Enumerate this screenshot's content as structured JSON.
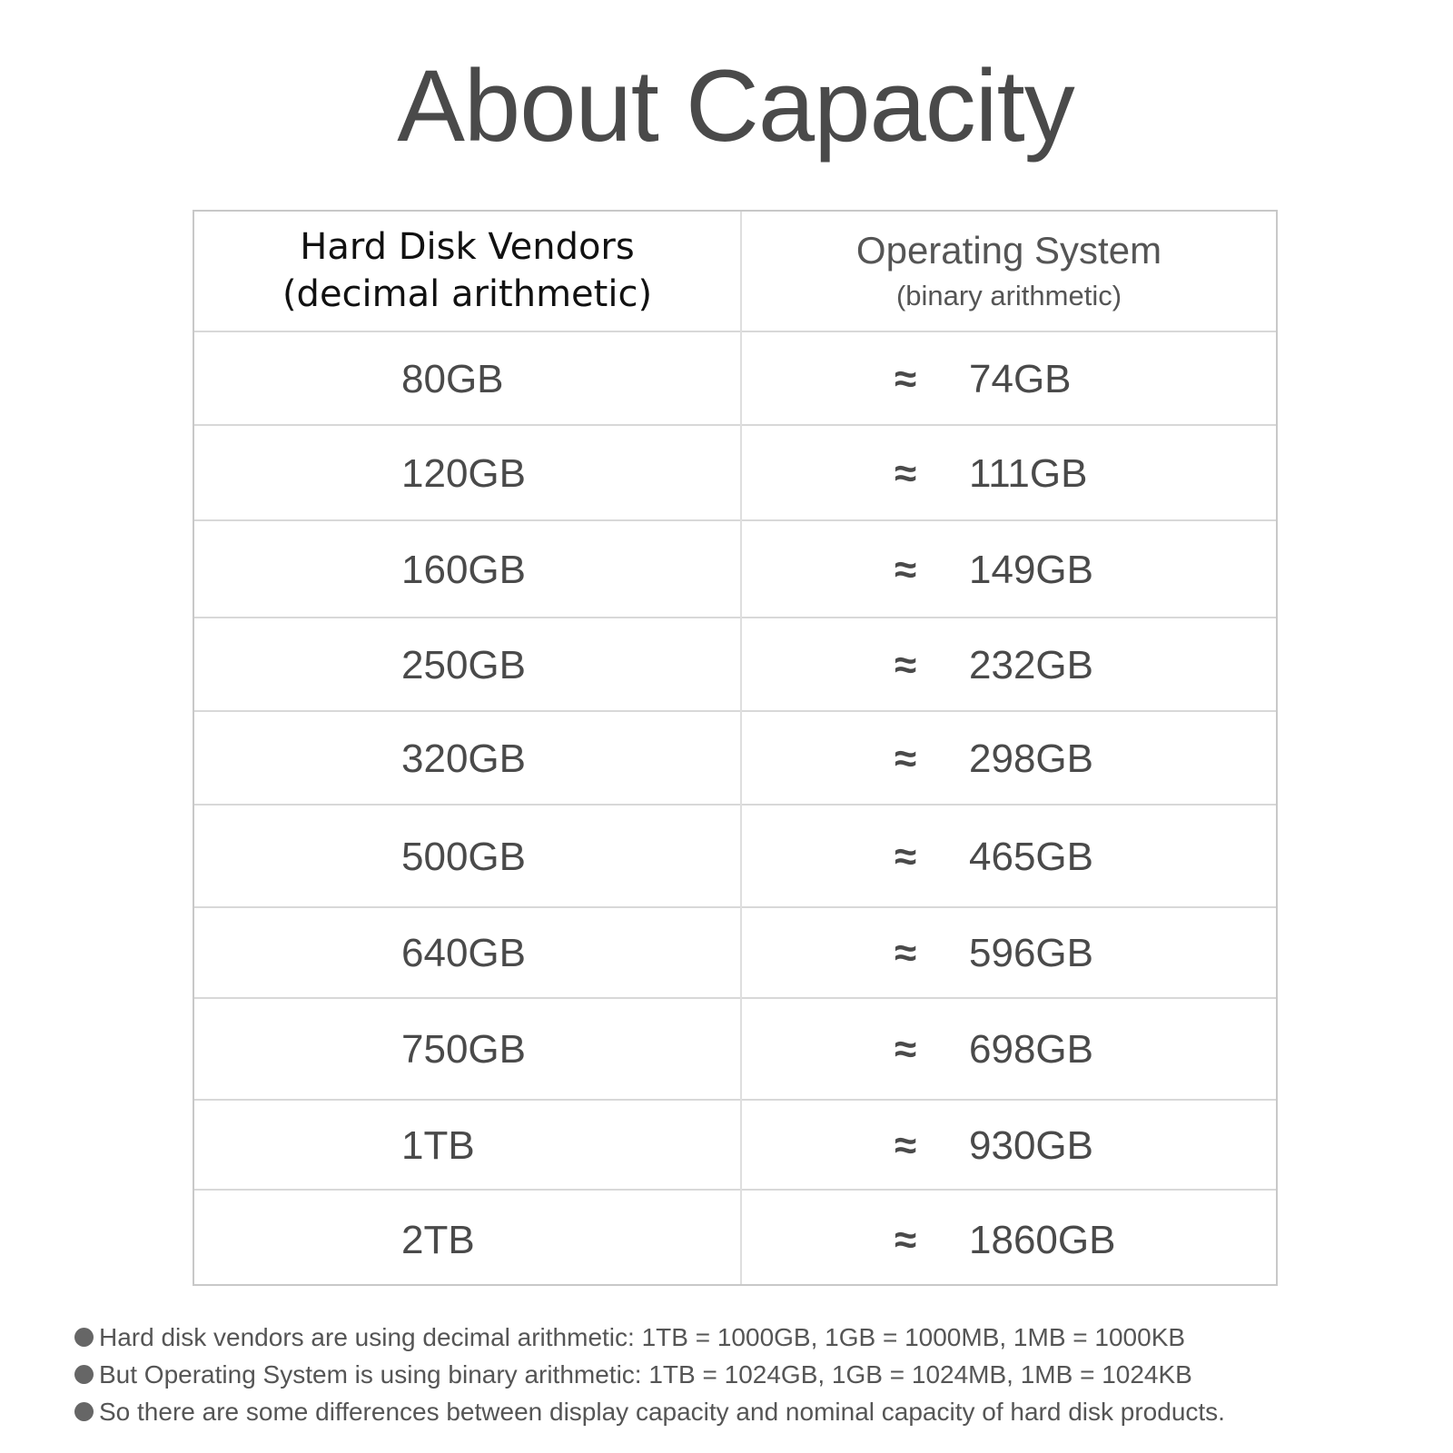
{
  "title": "About Capacity",
  "table": {
    "header": {
      "vendors_line1": "Hard Disk Vendors",
      "vendors_line2": "(decimal arithmetic)",
      "os_line1": "Operating System",
      "os_line2": "(binary arithmetic)"
    },
    "approx_symbol": "≈",
    "rows": [
      {
        "vendor": "80GB",
        "os": "74GB"
      },
      {
        "vendor": "120GB",
        "os": "111GB"
      },
      {
        "vendor": "160GB",
        "os": "149GB"
      },
      {
        "vendor": "250GB",
        "os": "232GB"
      },
      {
        "vendor": "320GB",
        "os": "298GB"
      },
      {
        "vendor": "500GB",
        "os": "465GB"
      },
      {
        "vendor": "640GB",
        "os": "596GB"
      },
      {
        "vendor": "750GB",
        "os": "698GB"
      },
      {
        "vendor": "1TB",
        "os": "930GB"
      },
      {
        "vendor": "2TB",
        "os": "1860GB"
      }
    ]
  },
  "notes": [
    "Hard disk vendors are using decimal arithmetic: 1TB = 1000GB, 1GB = 1000MB, 1MB = 1000KB",
    "But Operating System is using binary arithmetic: 1TB = 1024GB, 1GB = 1024MB, 1MB = 1024KB",
    "So there are some differences between display capacity and nominal capacity of hard disk products."
  ]
}
